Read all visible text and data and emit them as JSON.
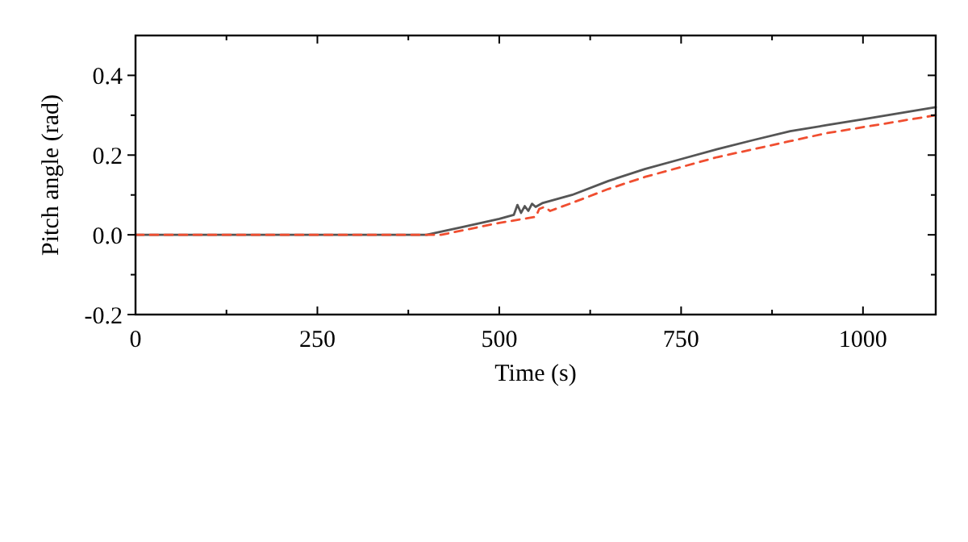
{
  "chart_data": {
    "type": "line",
    "xlabel": "Time (s)",
    "ylabel": "Pitch angle (rad)",
    "xlim": [
      0,
      1100
    ],
    "ylim": [
      -0.2,
      0.5
    ],
    "xticks": [
      0,
      {
        "value": 125,
        "label": null
      },
      250,
      {
        "value": 375,
        "label": null
      },
      500,
      {
        "value": 625,
        "label": null
      },
      750,
      {
        "value": 875,
        "label": null
      },
      1000
    ],
    "yticks": [
      {
        "value": -0.2,
        "label": "-0.2"
      },
      {
        "value": -0.1,
        "label": null
      },
      {
        "value": 0,
        "label": "0.0"
      },
      {
        "value": 0.1,
        "label": null
      },
      {
        "value": 0.2,
        "label": "0.2"
      },
      {
        "value": 0.3,
        "label": null
      },
      {
        "value": 0.4,
        "label": "0.4"
      }
    ],
    "grid": false,
    "series": [
      {
        "color": "#555555",
        "line_style": "solid",
        "x": [
          0,
          400,
          450,
          500,
          520,
          525,
          530,
          535,
          540,
          545,
          550,
          560,
          600,
          650,
          700,
          750,
          800,
          850,
          900,
          950,
          1000,
          1050,
          1100
        ],
        "values": [
          0,
          0,
          0.02,
          0.04,
          0.05,
          0.075,
          0.055,
          0.072,
          0.06,
          0.078,
          0.07,
          0.08,
          0.1,
          0.135,
          0.165,
          0.19,
          0.215,
          0.238,
          0.26,
          0.275,
          0.29,
          0.305,
          0.32
        ]
      },
      {
        "color": "#f04e30",
        "line_style": "dashed",
        "x": [
          0,
          420,
          500,
          550,
          555,
          562,
          570,
          600,
          650,
          700,
          750,
          800,
          850,
          900,
          950,
          1000,
          1050,
          1100
        ],
        "values": [
          0,
          0,
          0.03,
          0.045,
          0.065,
          0.07,
          0.06,
          0.08,
          0.115,
          0.145,
          0.17,
          0.195,
          0.215,
          0.235,
          0.255,
          0.27,
          0.285,
          0.3
        ]
      }
    ]
  }
}
